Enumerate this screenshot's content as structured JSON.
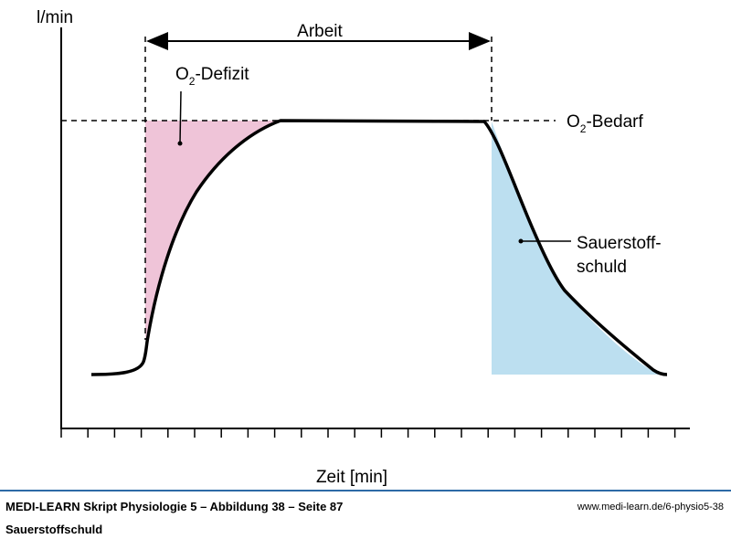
{
  "diagram": {
    "y_axis_label": "l/min",
    "x_axis_label": "Zeit [min]",
    "work_label": "Arbeit",
    "deficit_label_prefix": "O",
    "deficit_label_sub": "2",
    "deficit_label_suffix": "-Defizit",
    "demand_label_prefix": "O",
    "demand_label_sub": "2",
    "demand_label_suffix": "-Bedarf",
    "debt_label_line1": "Sauerstoff-",
    "debt_label_line2": "schuld",
    "colors": {
      "deficit_fill": "#efc4d8",
      "debt_fill": "#bcdff0",
      "curve": "#000000",
      "footer_rule": "#2d6aa6"
    }
  },
  "footer": {
    "title": "MEDI-LEARN Skript Physiologie 5 – Abbildung 38 – Seite 87",
    "subtitle": "Sauerstoffschuld",
    "url": "www.medi-learn.de/6-physio5-38"
  }
}
